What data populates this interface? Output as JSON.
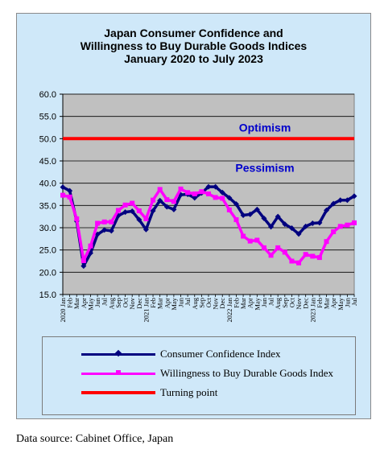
{
  "chart_data": {
    "type": "line",
    "title": [
      "Japan Consumer Confidence and",
      "Willingness to Buy Durable Goods Indices",
      "January 2020 to July 2023"
    ],
    "ylim": [
      15,
      60
    ],
    "yticks": [
      "15.0",
      "20.0",
      "25.0",
      "30.0",
      "35.0",
      "40.0",
      "45.0",
      "50.0",
      "55.0",
      "60.0"
    ],
    "grid": true,
    "legend_position": "bottom",
    "categories": [
      "2020 Jan",
      "Feb",
      "Mar",
      "Apr",
      "May",
      "Jun",
      "Jul",
      "Aug",
      "Sep",
      "Oct",
      "Nov",
      "Dec",
      "2021 Jan",
      "Feb",
      "Mar",
      "Apr",
      "May",
      "Jun",
      "Jul",
      "Aug",
      "Sep",
      "Oct",
      "Nov",
      "Dec",
      "2022 Jan",
      "Feb",
      "Mar",
      "Apr",
      "May",
      "Jun",
      "Jul",
      "Aug",
      "Sep",
      "Oct",
      "Nov",
      "Dec",
      "2023 Jan",
      "Feb",
      "Mar",
      "Apr",
      "May",
      "Jun",
      "Jul"
    ],
    "series": [
      {
        "name": "Consumer Confidence Index",
        "color": "#00007f",
        "values": [
          39.1,
          38.3,
          31.5,
          21.4,
          24.3,
          28.5,
          29.5,
          29.3,
          32.7,
          33.5,
          33.7,
          31.8,
          29.6,
          33.8,
          36.1,
          34.7,
          34.1,
          37.4,
          37.5,
          36.7,
          37.8,
          39.2,
          39.2,
          37.9,
          36.7,
          35.3,
          32.8,
          33.0,
          34.1,
          32.1,
          30.2,
          32.5,
          30.8,
          29.9,
          28.6,
          30.3,
          31.0,
          31.1,
          33.9,
          35.4,
          36.2,
          36.2,
          37.1
        ],
        "marker": "diamond"
      },
      {
        "name": "Willingness to Buy Durable Goods Index",
        "color": "#ff00ff",
        "values": [
          37.3,
          36.9,
          32.0,
          22.6,
          25.9,
          31.0,
          31.3,
          31.3,
          33.9,
          35.1,
          35.5,
          33.8,
          32.0,
          36.2,
          38.6,
          36.3,
          35.9,
          38.7,
          37.9,
          37.6,
          38.1,
          37.6,
          36.8,
          36.6,
          34.0,
          31.8,
          28.1,
          27.0,
          27.2,
          25.5,
          23.8,
          25.5,
          24.5,
          22.5,
          22.1,
          24.0,
          23.6,
          23.3,
          26.9,
          29.1,
          30.3,
          30.6,
          31.1
        ],
        "marker": "square"
      },
      {
        "name": "Turning point",
        "color": "#ff0000",
        "values": [
          50,
          50,
          50,
          50,
          50,
          50,
          50,
          50,
          50,
          50,
          50,
          50,
          50,
          50,
          50,
          50,
          50,
          50,
          50,
          50,
          50,
          50,
          50,
          50,
          50,
          50,
          50,
          50,
          50,
          50,
          50,
          50,
          50,
          50,
          50,
          50,
          50,
          50,
          50,
          50,
          50,
          50,
          50
        ],
        "marker": "none"
      }
    ],
    "annotations": [
      {
        "text": "Optimism",
        "y": 52.5,
        "color": "#0000cc"
      },
      {
        "text": "Pessimism",
        "y": 43.5,
        "color": "#0000cc"
      }
    ]
  },
  "legend": {
    "items": [
      {
        "label": "Consumer Confidence Index",
        "color": "#00007f"
      },
      {
        "label": "Willingness to Buy Durable Goods Index",
        "color": "#ff00ff"
      },
      {
        "label": "Turning point",
        "color": "#ff0000"
      }
    ]
  },
  "source": "Data source: Cabinet Office, Japan"
}
